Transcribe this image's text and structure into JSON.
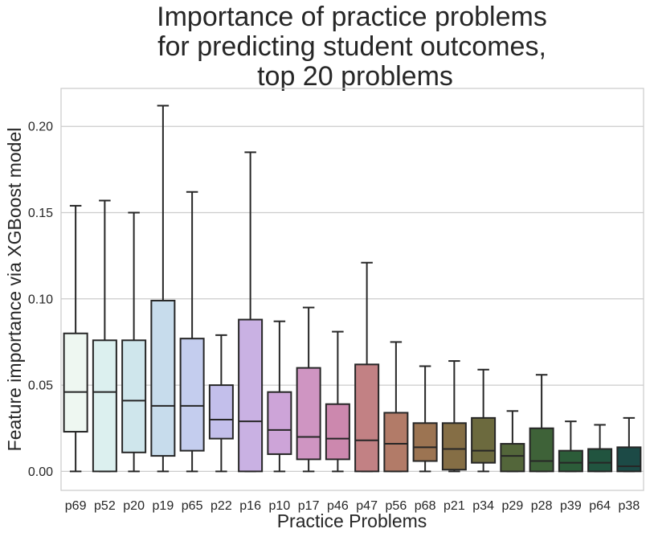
{
  "chart_data": {
    "type": "box",
    "title_lines": [
      "Importance of practice problems",
      "for predicting student outcomes,",
      "top 20 problems"
    ],
    "xlabel": "Practice Problems",
    "ylabel": "Feature importance via XGBoost model",
    "ylim": [
      -0.011,
      0.222
    ],
    "yticks": [
      "0.00",
      "0.05",
      "0.10",
      "0.15",
      "0.20"
    ],
    "ytick_values": [
      0.0,
      0.05,
      0.1,
      0.15,
      0.2
    ],
    "grid": "horizontal",
    "categories": [
      "p69",
      "p52",
      "p20",
      "p19",
      "p65",
      "p22",
      "p16",
      "p10",
      "p17",
      "p46",
      "p47",
      "p56",
      "p68",
      "p21",
      "p34",
      "p29",
      "p28",
      "p39",
      "p64",
      "p38"
    ],
    "boxes": [
      {
        "name": "p69",
        "whisker_low": 0.0,
        "q1": 0.023,
        "median": 0.046,
        "q3": 0.08,
        "whisker_high": 0.154,
        "color": "#eef7f1"
      },
      {
        "name": "p52",
        "whisker_low": 0.0,
        "q1": 0.0,
        "median": 0.046,
        "q3": 0.076,
        "whisker_high": 0.157,
        "color": "#dcf0ef"
      },
      {
        "name": "p20",
        "whisker_low": 0.0,
        "q1": 0.011,
        "median": 0.041,
        "q3": 0.076,
        "whisker_high": 0.15,
        "color": "#cfe6ec"
      },
      {
        "name": "p19",
        "whisker_low": 0.0,
        "q1": 0.009,
        "median": 0.038,
        "q3": 0.099,
        "whisker_high": 0.212,
        "color": "#c7dcec"
      },
      {
        "name": "p65",
        "whisker_low": 0.0,
        "q1": 0.012,
        "median": 0.038,
        "q3": 0.077,
        "whisker_high": 0.162,
        "color": "#c4cdee"
      },
      {
        "name": "p22",
        "whisker_low": 0.0,
        "q1": 0.019,
        "median": 0.03,
        "q3": 0.05,
        "whisker_high": 0.079,
        "color": "#c3bfeb"
      },
      {
        "name": "p16",
        "whisker_low": 0.0,
        "q1": 0.0,
        "median": 0.029,
        "q3": 0.088,
        "whisker_high": 0.185,
        "color": "#c9b1e3"
      },
      {
        "name": "p10",
        "whisker_low": 0.0,
        "q1": 0.01,
        "median": 0.024,
        "q3": 0.046,
        "whisker_high": 0.087,
        "color": "#cda4d8"
      },
      {
        "name": "p17",
        "whisker_low": 0.0,
        "q1": 0.007,
        "median": 0.02,
        "q3": 0.06,
        "whisker_high": 0.095,
        "color": "#cf95c2"
      },
      {
        "name": "p46",
        "whisker_low": 0.0,
        "q1": 0.007,
        "median": 0.019,
        "q3": 0.039,
        "whisker_high": 0.081,
        "color": "#cc88ae"
      },
      {
        "name": "p47",
        "whisker_low": 0.0,
        "q1": 0.0,
        "median": 0.018,
        "q3": 0.062,
        "whisker_high": 0.121,
        "color": "#c28184"
      },
      {
        "name": "p56",
        "whisker_low": 0.0,
        "q1": 0.0,
        "median": 0.016,
        "q3": 0.034,
        "whisker_high": 0.075,
        "color": "#b27b68"
      },
      {
        "name": "p68",
        "whisker_low": 0.0,
        "q1": 0.006,
        "median": 0.014,
        "q3": 0.028,
        "whisker_high": 0.061,
        "color": "#9c7452"
      },
      {
        "name": "p21",
        "whisker_low": 0.0,
        "q1": 0.001,
        "median": 0.013,
        "q3": 0.028,
        "whisker_high": 0.064,
        "color": "#856e45"
      },
      {
        "name": "p34",
        "whisker_low": 0.0,
        "q1": 0.005,
        "median": 0.012,
        "q3": 0.031,
        "whisker_high": 0.059,
        "color": "#6c6a3e"
      },
      {
        "name": "p29",
        "whisker_low": 0.0,
        "q1": 0.0,
        "median": 0.009,
        "q3": 0.016,
        "whisker_high": 0.035,
        "color": "#53663a"
      },
      {
        "name": "p28",
        "whisker_low": 0.0,
        "q1": 0.0,
        "median": 0.006,
        "q3": 0.025,
        "whisker_high": 0.056,
        "color": "#3e6238"
      },
      {
        "name": "p39",
        "whisker_low": 0.0,
        "q1": 0.0,
        "median": 0.005,
        "q3": 0.012,
        "whisker_high": 0.029,
        "color": "#2c5c39"
      },
      {
        "name": "p64",
        "whisker_low": 0.0,
        "q1": 0.0,
        "median": 0.005,
        "q3": 0.013,
        "whisker_high": 0.027,
        "color": "#21543f"
      },
      {
        "name": "p38",
        "whisker_low": 0.0,
        "q1": 0.0,
        "median": 0.003,
        "q3": 0.014,
        "whisker_high": 0.031,
        "color": "#1c4a46"
      }
    ]
  }
}
